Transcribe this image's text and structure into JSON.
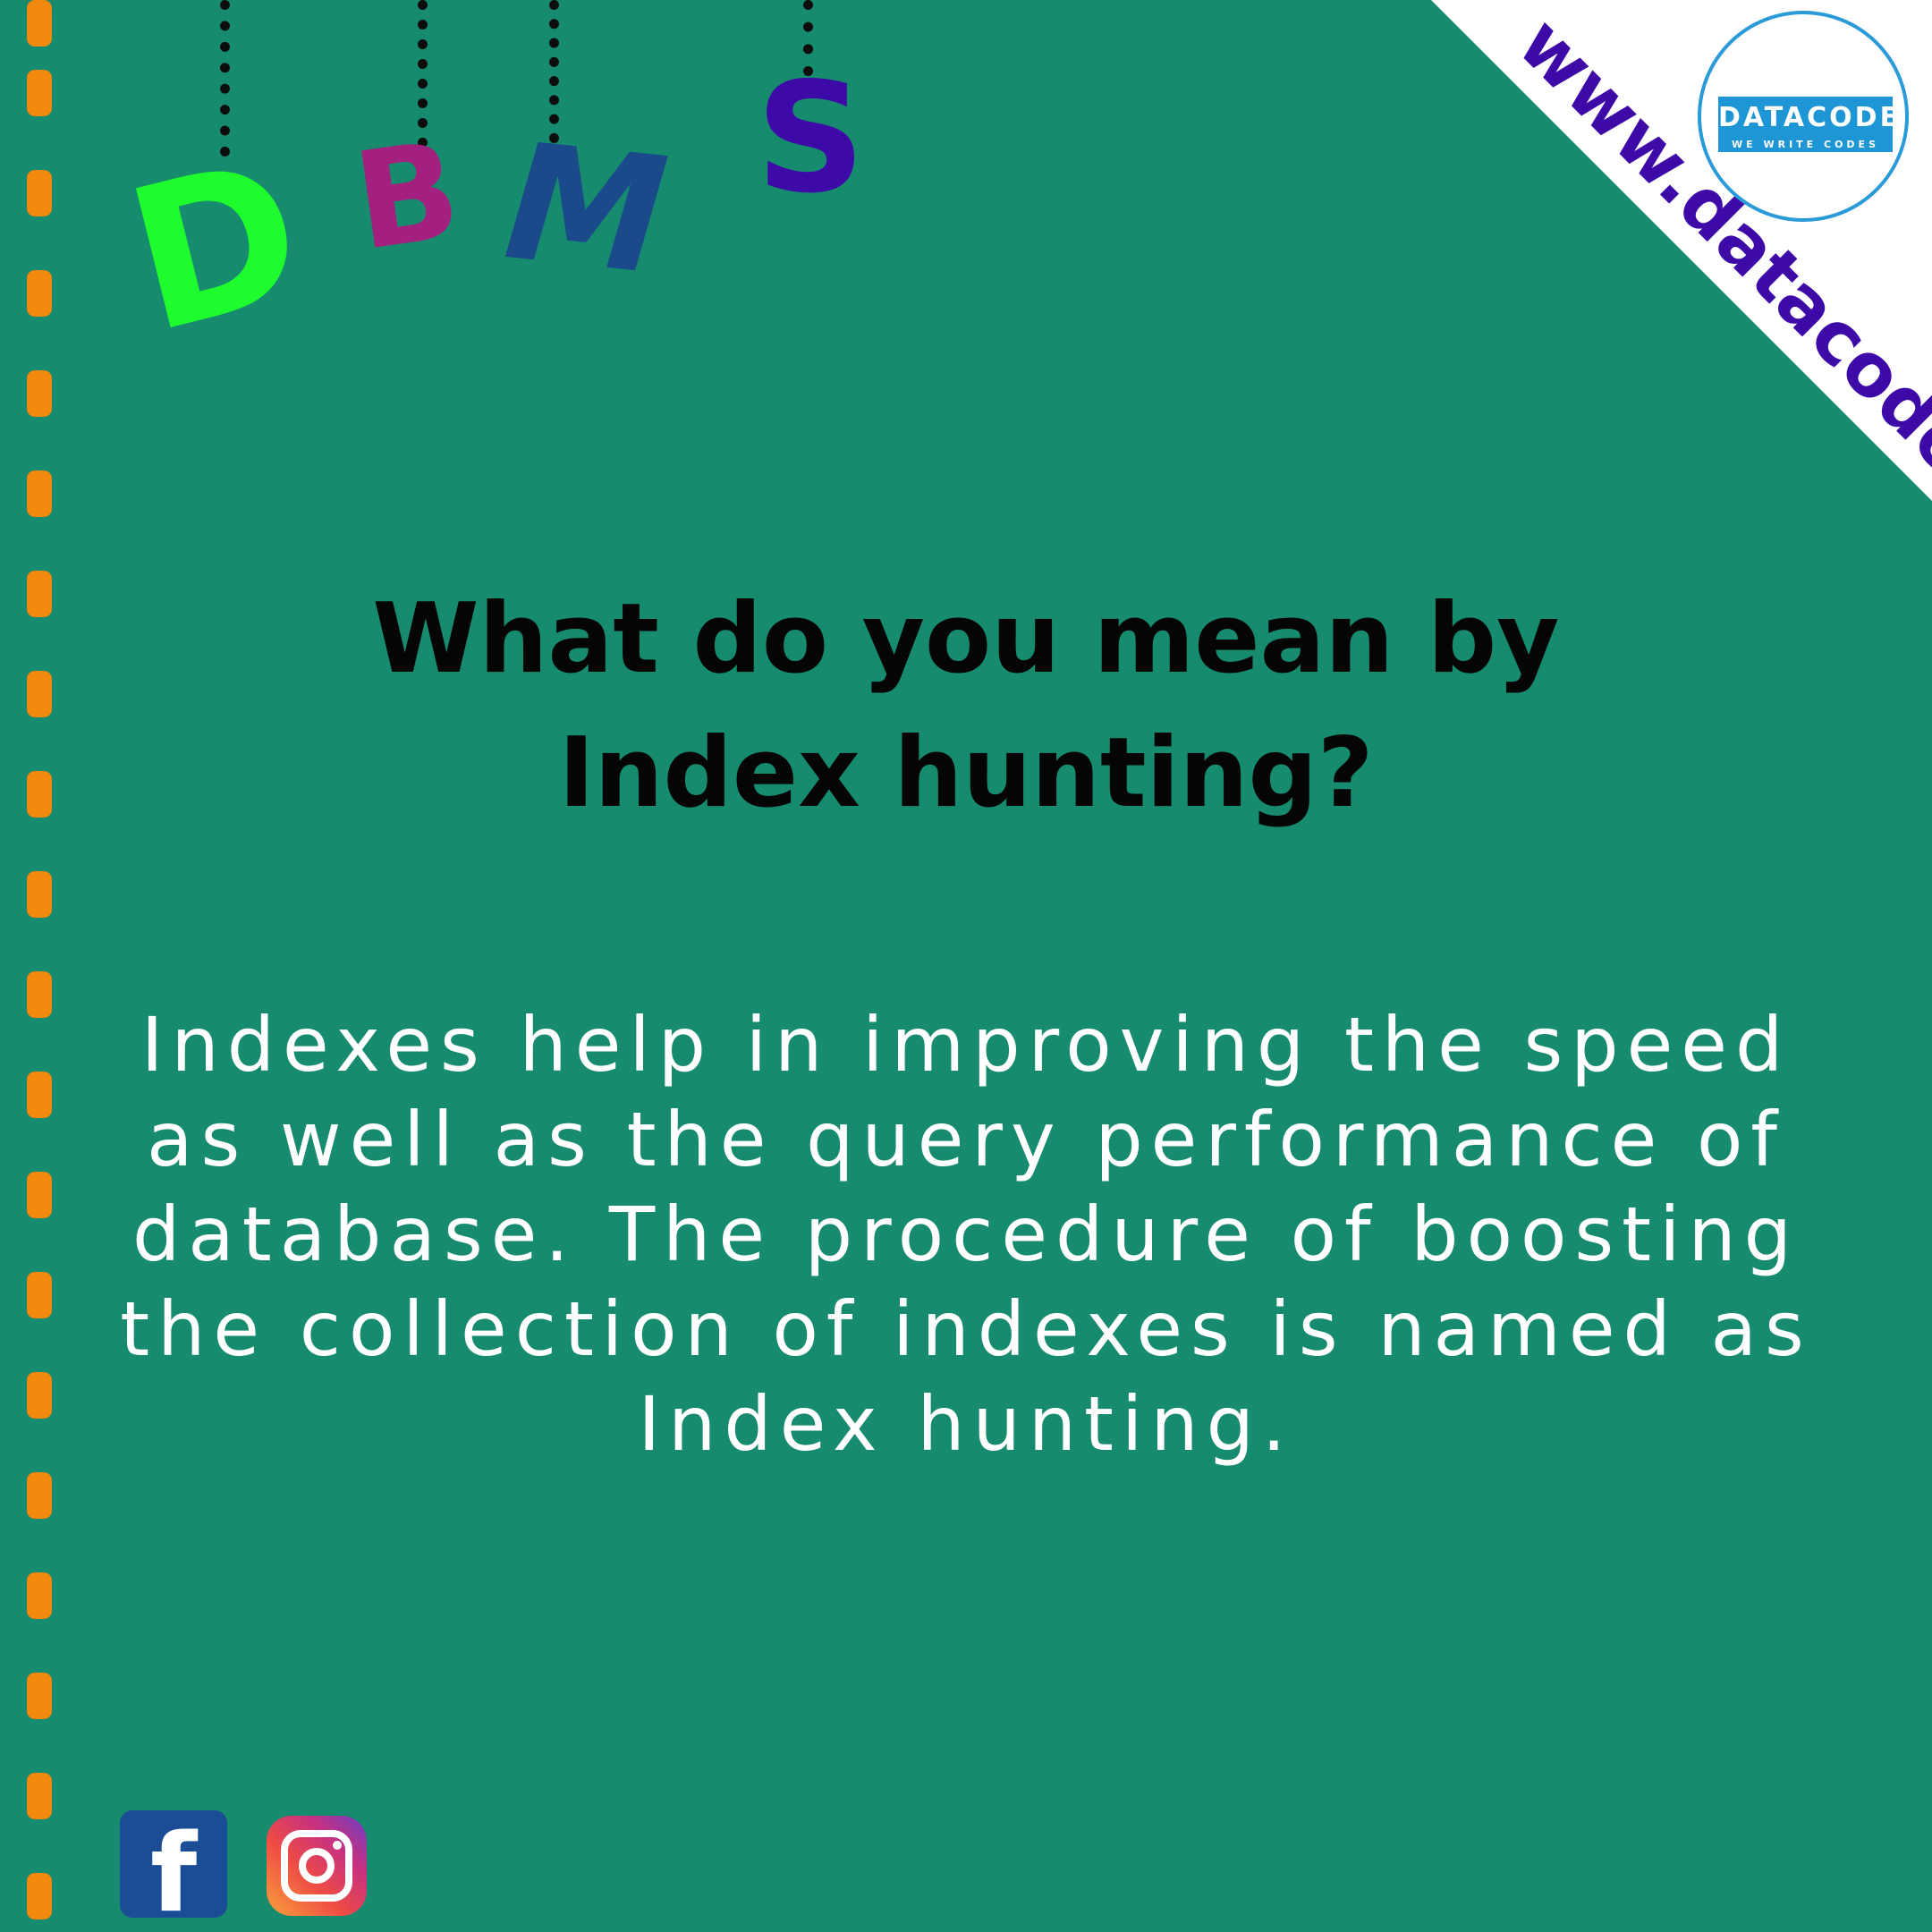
{
  "title_letters": {
    "d": "D",
    "b": "B",
    "m": "M",
    "s": "S"
  },
  "website": "www.datacode.in",
  "logo": {
    "name": "DATACODE",
    "tagline": "WE WRITE CODES"
  },
  "question": "What do you mean by Index hunting?",
  "answer": "Indexes help in improving the speed as well as the query performance of database. The procedure of boosting the collection of indexes is named as Index hunting.",
  "social": {
    "facebook_glyph": "f",
    "icons": [
      "facebook-icon",
      "instagram-icon"
    ]
  },
  "colors": {
    "background": "#178b6e",
    "dash": "#f0890e",
    "letter_d": "#1efc2e",
    "letter_b": "#a3207e",
    "letter_m": "#1a4a8a",
    "letter_s": "#3d0aa8",
    "url": "#3d0aa8",
    "logo_blue": "#1e95d4"
  }
}
